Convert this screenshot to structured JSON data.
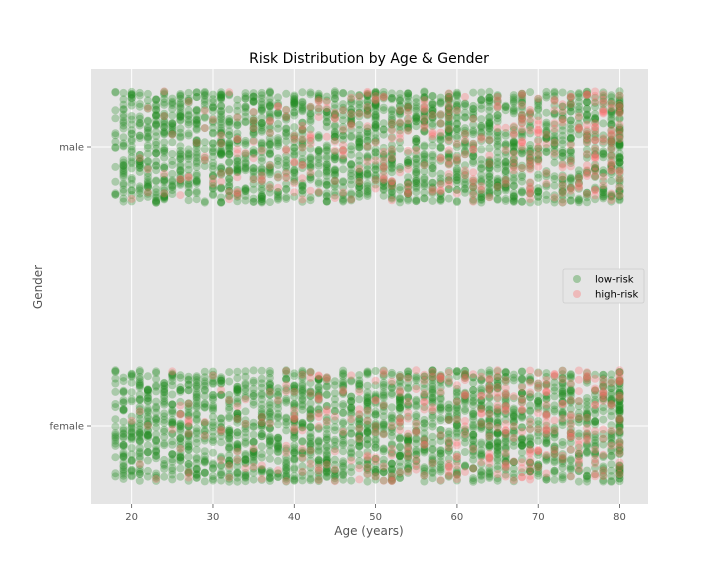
{
  "chart_data": {
    "type": "scatter",
    "title": "Risk Distribution by Age & Gender",
    "xlabel": "Age (years)",
    "ylabel": "Gender",
    "xlim": [
      15,
      83.5
    ],
    "xticks": [
      20,
      30,
      40,
      50,
      60,
      70,
      80
    ],
    "xtick_labels": [
      "20",
      "30",
      "40",
      "50",
      "60",
      "70",
      "80"
    ],
    "categories": [
      "female",
      "male"
    ],
    "category_jitter": 0.2,
    "grid": true,
    "legend": "center-right",
    "series": [
      {
        "name": "low-risk",
        "color": "#228B22",
        "x_range": [
          18,
          80
        ],
        "counts_per_category": {
          "female": 2100,
          "male": 2100
        }
      },
      {
        "name": "high-risk",
        "color": "#FF6A6A",
        "x_range": [
          18,
          80
        ],
        "counts_per_category": {
          "female": 400,
          "male": 400
        }
      }
    ]
  }
}
